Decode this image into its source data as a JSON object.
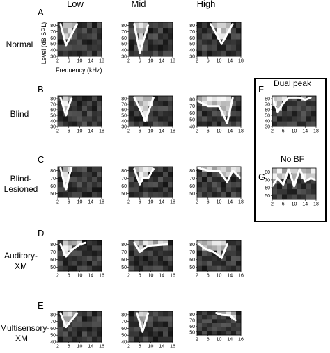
{
  "columns": [
    "Low",
    "Mid",
    "High"
  ],
  "rows": [
    {
      "letter": "A",
      "label_lines": [
        "Normal"
      ]
    },
    {
      "letter": "B",
      "label_lines": [
        "Blind"
      ]
    },
    {
      "letter": "C",
      "label_lines": [
        "Blind-",
        "Lesioned"
      ]
    },
    {
      "letter": "D",
      "label_lines": [
        "Auditory-",
        "XM"
      ]
    },
    {
      "letter": "E",
      "label_lines": [
        "Multisensory-",
        "XM"
      ]
    }
  ],
  "axis": {
    "ylabel": "Level (dB SPL)",
    "xlabel": "Frequency (kHz)"
  },
  "side_panels": [
    {
      "letter": "F",
      "title": "Dual peak"
    },
    {
      "letter": "G",
      "title": "No BF"
    }
  ],
  "colors": {
    "contour": "#ffffff",
    "border": "#000000",
    "background": "#ffffff"
  },
  "chart_data": [
    {
      "id": "A-low",
      "type": "heatmap",
      "x_ticks": [
        "2",
        "6",
        "10",
        "14",
        "18"
      ],
      "y_ticks": [
        "80",
        "70",
        "60",
        "50",
        "40",
        "30"
      ],
      "y_range": [
        30,
        85
      ],
      "contour": [
        [
          3,
          82
        ],
        [
          5,
          48
        ],
        [
          7,
          65
        ],
        [
          9,
          82
        ]
      ]
    },
    {
      "id": "A-mid",
      "type": "heatmap",
      "x_ticks": [
        "2",
        "6",
        "10",
        "14",
        "18"
      ],
      "y_ticks": [
        "80",
        "70",
        "60",
        "50",
        "40",
        "30"
      ],
      "y_range": [
        30,
        85
      ],
      "contour": [
        [
          4,
          82
        ],
        [
          6,
          36
        ],
        [
          9,
          80
        ]
      ]
    },
    {
      "id": "A-high",
      "type": "heatmap",
      "x_ticks": [
        "2",
        "6",
        "10",
        "14",
        "18"
      ],
      "y_ticks": [
        "80",
        "70",
        "60",
        "50",
        "40",
        "30"
      ],
      "y_range": [
        30,
        85
      ],
      "contour": [
        [
          7,
          82
        ],
        [
          11,
          50
        ],
        [
          15,
          82
        ]
      ]
    },
    {
      "id": "B-low",
      "type": "heatmap",
      "x_ticks": [
        "2",
        "6",
        "10",
        "14",
        "18"
      ],
      "y_ticks": [
        "80",
        "70",
        "60",
        "50",
        "40",
        "30"
      ],
      "y_range": [
        30,
        85
      ],
      "contour": [
        [
          3,
          82
        ],
        [
          5,
          50
        ],
        [
          6,
          68
        ],
        [
          7,
          80
        ]
      ]
    },
    {
      "id": "B-mid",
      "type": "heatmap",
      "x_ticks": [
        "2",
        "6",
        "10",
        "14",
        "18"
      ],
      "y_ticks": [
        "80",
        "70",
        "60",
        "50",
        "40",
        "30"
      ],
      "y_range": [
        30,
        85
      ],
      "contour": [
        [
          4,
          82
        ],
        [
          7,
          52
        ],
        [
          8,
          40
        ],
        [
          11,
          82
        ]
      ]
    },
    {
      "id": "B-high",
      "type": "heatmap",
      "x_ticks": [
        "2",
        "6",
        "10",
        "14",
        "18"
      ],
      "y_ticks": [
        "80",
        "70",
        "60",
        "50",
        "40"
      ],
      "y_range": [
        40,
        85
      ],
      "contour": [
        [
          2,
          78
        ],
        [
          6,
          70
        ],
        [
          10,
          70
        ],
        [
          13,
          45
        ],
        [
          15,
          82
        ]
      ]
    },
    {
      "id": "C-low",
      "type": "heatmap",
      "x_ticks": [
        "2",
        "6",
        "10",
        "14",
        "18"
      ],
      "y_ticks": [
        "80",
        "70",
        "60",
        "50"
      ],
      "y_range": [
        45,
        85
      ],
      "contour": [
        [
          3,
          83
        ],
        [
          5,
          55
        ],
        [
          6,
          72
        ],
        [
          7,
          84
        ]
      ]
    },
    {
      "id": "C-mid",
      "type": "heatmap",
      "x_ticks": [
        "2",
        "6",
        "10",
        "14",
        "18"
      ],
      "y_ticks": [
        "80",
        "70",
        "60",
        "50"
      ],
      "y_range": [
        45,
        85
      ],
      "contour": [
        [
          4,
          82
        ],
        [
          6,
          62
        ],
        [
          7,
          70
        ],
        [
          9,
          70
        ],
        [
          11,
          82
        ]
      ]
    },
    {
      "id": "C-high",
      "type": "heatmap",
      "x_ticks": [
        "2",
        "6",
        "10",
        "14",
        "18"
      ],
      "y_ticks": [
        "80",
        "70",
        "60",
        "50"
      ],
      "y_range": [
        45,
        85
      ],
      "contour": [
        [
          2,
          84
        ],
        [
          6,
          80
        ],
        [
          10,
          80
        ],
        [
          13,
          65
        ],
        [
          15,
          80
        ],
        [
          18,
          70
        ]
      ]
    },
    {
      "id": "D-low",
      "type": "heatmap",
      "x_ticks": [
        "2",
        "6",
        "10",
        "14",
        "16"
      ],
      "y_ticks": [
        "80",
        "70",
        "60",
        "50"
      ],
      "y_range": [
        45,
        85
      ],
      "contour": [
        [
          3,
          80
        ],
        [
          5,
          64
        ],
        [
          7,
          72
        ],
        [
          10,
          80
        ],
        [
          12,
          82
        ]
      ]
    },
    {
      "id": "D-mid",
      "type": "heatmap",
      "x_ticks": [
        "2",
        "6",
        "10",
        "14",
        "16"
      ],
      "y_ticks": [
        "80",
        "70",
        "60",
        "50"
      ],
      "y_range": [
        45,
        85
      ],
      "contour": [
        [
          4,
          82
        ],
        [
          6,
          70
        ],
        [
          9,
          78
        ],
        [
          16,
          80
        ]
      ]
    },
    {
      "id": "D-high",
      "type": "heatmap",
      "x_ticks": [
        "2",
        "6",
        "10",
        "14",
        "16"
      ],
      "y_ticks": [
        "80",
        "70",
        "60",
        "50"
      ],
      "y_range": [
        45,
        85
      ],
      "contour": [
        [
          2,
          82
        ],
        [
          5,
          74
        ],
        [
          8,
          70
        ],
        [
          11,
          62
        ],
        [
          13,
          80
        ]
      ]
    },
    {
      "id": "E-low",
      "type": "heatmap",
      "x_ticks": [
        "2",
        "6",
        "10",
        "14",
        "16"
      ],
      "y_ticks": [
        "80",
        "70",
        "60",
        "50",
        "40"
      ],
      "y_range": [
        40,
        85
      ],
      "contour": [
        [
          3,
          82
        ],
        [
          5,
          62
        ],
        [
          7,
          72
        ],
        [
          9,
          82
        ]
      ]
    },
    {
      "id": "E-mid",
      "type": "heatmap",
      "x_ticks": [
        "2",
        "6",
        "10",
        "14",
        "16"
      ],
      "y_ticks": [
        "80",
        "70",
        "60",
        "50",
        "40"
      ],
      "y_range": [
        40,
        85
      ],
      "contour": [
        [
          5,
          82
        ],
        [
          7,
          55
        ],
        [
          9,
          82
        ]
      ]
    },
    {
      "id": "E-high",
      "type": "heatmap",
      "x_ticks": [
        "2",
        "6",
        "10",
        "14",
        "16"
      ],
      "y_ticks": [
        "80",
        "70",
        "60",
        "50"
      ],
      "y_range": [
        45,
        85
      ],
      "contour": [
        [
          9,
          82
        ],
        [
          11,
          79
        ],
        [
          14,
          78
        ],
        [
          16,
          70
        ]
      ]
    },
    {
      "id": "F",
      "type": "heatmap",
      "x_ticks": [
        "2",
        "6",
        "10",
        "14",
        "18"
      ],
      "y_ticks": [
        "80",
        "70",
        "60",
        "50",
        "40",
        "30"
      ],
      "y_range": [
        30,
        85
      ],
      "contour": [
        [
          2,
          82
        ],
        [
          4,
          56
        ],
        [
          6,
          72
        ],
        [
          8,
          82
        ],
        [
          12,
          82
        ],
        [
          14,
          78
        ],
        [
          16,
          82
        ]
      ]
    },
    {
      "id": "G",
      "type": "heatmap",
      "x_ticks": [
        "2",
        "6",
        "10",
        "14",
        "18"
      ],
      "y_ticks": [
        "80",
        "70",
        "60",
        "50"
      ],
      "y_range": [
        45,
        85
      ],
      "contour": [
        [
          2,
          62
        ],
        [
          4,
          72
        ],
        [
          6,
          64
        ],
        [
          8,
          84
        ],
        [
          10,
          62
        ],
        [
          12,
          84
        ],
        [
          14,
          68
        ],
        [
          16,
          72
        ],
        [
          18,
          70
        ]
      ]
    }
  ]
}
